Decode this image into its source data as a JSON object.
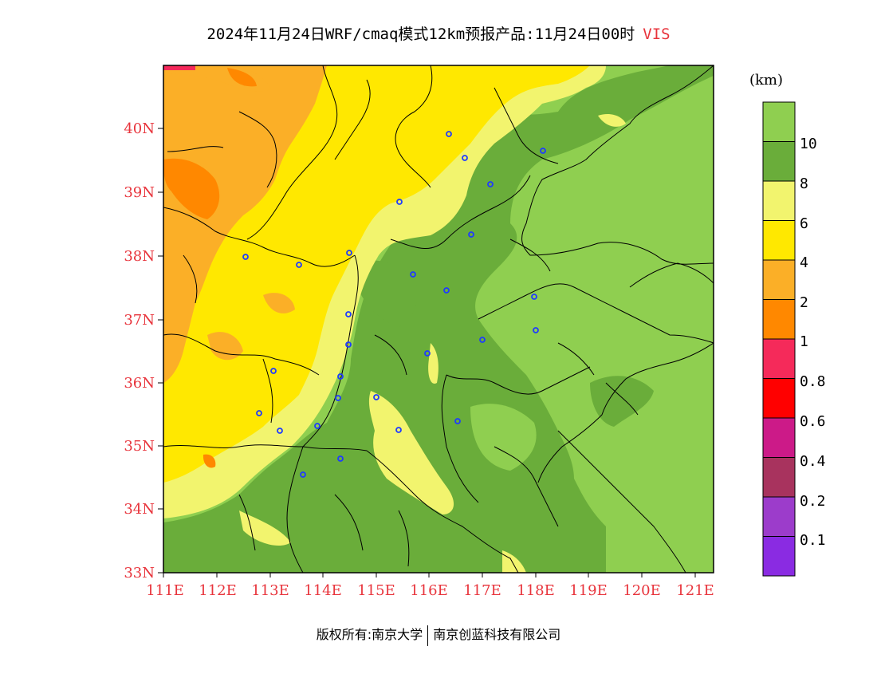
{
  "title": {
    "main": "2024年11月24日WRF/cmaq模式12km预报产品:11月24日00时",
    "variable": "VIS"
  },
  "unit": "(km)",
  "lat_labels": [
    "40N",
    "39N",
    "38N",
    "37N",
    "36N",
    "35N",
    "34N",
    "33N"
  ],
  "lon_labels": [
    "111E",
    "112E",
    "113E",
    "114E",
    "115E",
    "116E",
    "117E",
    "118E",
    "119E",
    "120E",
    "121E"
  ],
  "legend": {
    "labels": [
      "10",
      "8",
      "6",
      "4",
      "2",
      "1",
      "0.8",
      "0.6",
      "0.4",
      "0.2",
      "0.1"
    ],
    "colors": [
      "#8fcf50",
      "#6aad3a",
      "#f2f46e",
      "#ffe800",
      "#fbaf27",
      "#ff8800",
      "#f52a5a",
      "#ff0000",
      "#cc1a88",
      "#a8335e",
      "#9c3ccb",
      "#8a2be2"
    ]
  },
  "footer": {
    "left": "版权所有:南京大学",
    "right": "南京创蓝科技有限公司"
  },
  "colors": {
    "vis_gt10": "#8fcf50",
    "vis_8_10": "#6aad3a",
    "vis_6_8": "#f2f46e",
    "vis_4_6": "#ffe800",
    "vis_2_4": "#fbaf27",
    "vis_1_2": "#ff8800",
    "axis_label": "#e8343c",
    "city_marker": "#1f3bff"
  }
}
